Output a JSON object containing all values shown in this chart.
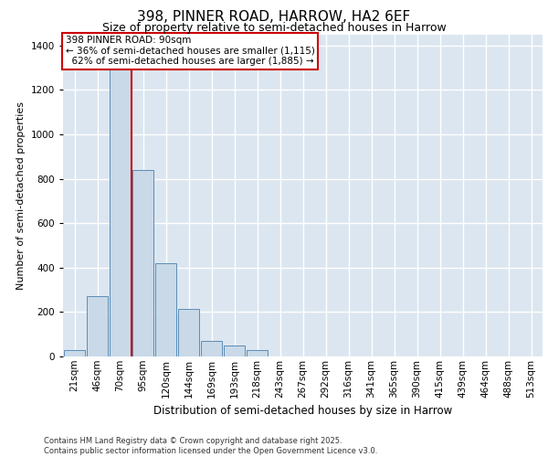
{
  "title1": "398, PINNER ROAD, HARROW, HA2 6EF",
  "title2": "Size of property relative to semi-detached houses in Harrow",
  "xlabel": "Distribution of semi-detached houses by size in Harrow",
  "ylabel": "Number of semi-detached properties",
  "categories": [
    "21sqm",
    "46sqm",
    "70sqm",
    "95sqm",
    "120sqm",
    "144sqm",
    "169sqm",
    "193sqm",
    "218sqm",
    "243sqm",
    "267sqm",
    "292sqm",
    "316sqm",
    "341sqm",
    "365sqm",
    "390sqm",
    "415sqm",
    "439sqm",
    "464sqm",
    "488sqm",
    "513sqm"
  ],
  "values": [
    30,
    270,
    1300,
    840,
    420,
    215,
    70,
    50,
    30,
    0,
    0,
    0,
    0,
    0,
    0,
    0,
    0,
    0,
    0,
    0,
    0
  ],
  "bar_color": "#c9d9e8",
  "bar_edge_color": "#5b8db8",
  "property_value": "90sqm",
  "pct_smaller": 36,
  "count_smaller": 1115,
  "pct_larger": 62,
  "count_larger": 1885,
  "ylim": [
    0,
    1450
  ],
  "yticks": [
    0,
    200,
    400,
    600,
    800,
    1000,
    1200,
    1400
  ],
  "annotation_box_color": "#cc0000",
  "line_color": "#cc0000",
  "bg_color": "#dce6f0",
  "footer": "Contains HM Land Registry data © Crown copyright and database right 2025.\nContains public sector information licensed under the Open Government Licence v3.0.",
  "title1_fontsize": 11,
  "title2_fontsize": 9,
  "xlabel_fontsize": 8.5,
  "ylabel_fontsize": 8,
  "tick_fontsize": 7.5,
  "annotation_fontsize": 7.5,
  "footer_fontsize": 6
}
